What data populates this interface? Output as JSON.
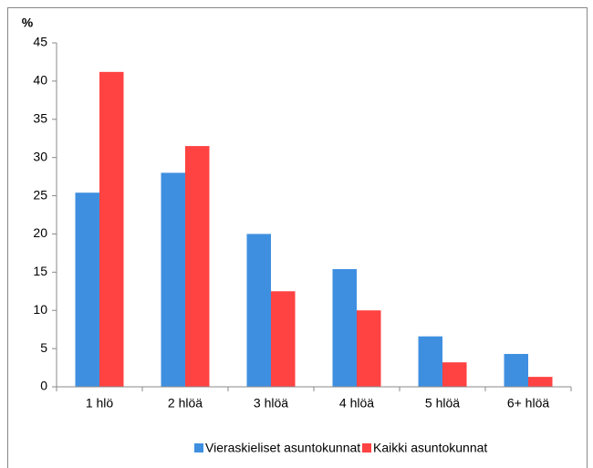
{
  "chart_data": {
    "type": "bar",
    "ylabel": "%",
    "categories": [
      "1 hlö",
      "2 hlöä",
      "3 hlöä",
      "4 hlöä",
      "5 hlöä",
      "6+ hlöä"
    ],
    "series": [
      {
        "name": "Vieraskieliset asuntokunnat",
        "color": "#3f8fe0",
        "values": [
          25.4,
          28,
          20,
          15.4,
          6.6,
          4.3
        ]
      },
      {
        "name": "Kaikki asuntokunnat",
        "color": "#ff4242",
        "values": [
          41.2,
          31.5,
          12.5,
          10,
          3.2,
          1.3
        ]
      }
    ],
    "ylim": [
      0,
      45
    ],
    "yticks": [
      0,
      5,
      10,
      15,
      20,
      25,
      30,
      35,
      40,
      45
    ],
    "grid": false,
    "legend": "bottom"
  }
}
